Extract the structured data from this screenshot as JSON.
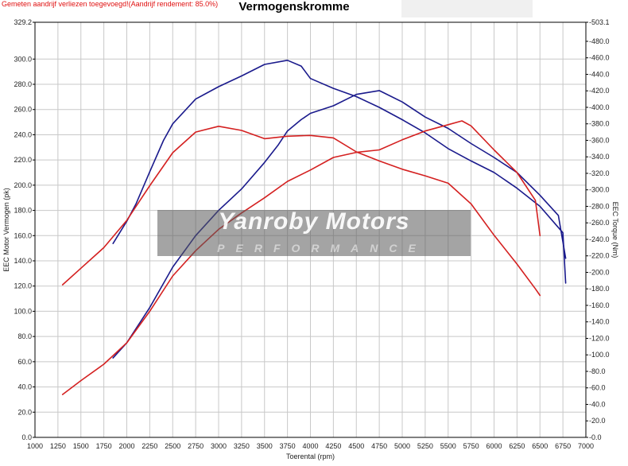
{
  "header": {
    "note": "Gemeten aandrijf verliezen toegevoegd!(Aandrijf rendement: 85.0%)",
    "title": "Vermogenskromme"
  },
  "watermark": {
    "main": "Yanroby Motors",
    "sub": "PERFORMANCE"
  },
  "colors": {
    "run1": "#1a1a8c",
    "run2": "#d42020",
    "grid": "#c8c8c8"
  },
  "chart_data": {
    "type": "line",
    "title": "Vermogenskromme",
    "xlabel": "Toerental (rpm)",
    "ylabel": "EEC Motor Vermogen (pk)",
    "y2label": "EEC Torque (Nm)",
    "xlim": [
      1000,
      7000
    ],
    "ylim": [
      0.0,
      329.2
    ],
    "y2lim": [
      0.0,
      503.1
    ],
    "grid": true,
    "x_ticks": [
      1000,
      1250,
      1500,
      1750,
      2000,
      2250,
      2500,
      2750,
      3000,
      3250,
      3500,
      3750,
      4000,
      4250,
      4500,
      4750,
      5000,
      5250,
      5500,
      5750,
      6000,
      6250,
      6500,
      6750,
      7000
    ],
    "y_ticks": [
      "0.0",
      "20.0",
      "40.0",
      "60.0",
      "80.0",
      "100.0",
      "120.0",
      "140.0",
      "160.0",
      "180.0",
      "200.0",
      "220.0",
      "240.0",
      "260.0",
      "280.0",
      "300.0",
      "329.2"
    ],
    "y_tick_values": [
      0,
      20,
      40,
      60,
      80,
      100,
      120,
      140,
      160,
      180,
      200,
      220,
      240,
      260,
      280,
      300,
      329.2
    ],
    "y2_ticks": [
      "0.0",
      "20.0",
      "40.0",
      "60.0",
      "80.0",
      "100.0",
      "120.0",
      "140.0",
      "160.0",
      "180.0",
      "200.0",
      "220.0",
      "240.0",
      "260.0",
      "280.0",
      "300.0",
      "320.0",
      "340.0",
      "360.0",
      "380.0",
      "400.0",
      "420.0",
      "440.0",
      "460.0",
      "480.0",
      "503.1"
    ],
    "y2_tick_values": [
      0,
      20,
      40,
      60,
      80,
      100,
      120,
      140,
      160,
      180,
      200,
      220,
      240,
      260,
      280,
      300,
      320,
      340,
      360,
      380,
      400,
      420,
      440,
      460,
      480,
      503.1
    ],
    "series": [
      {
        "color": "#1a1a8c",
        "axis": "left",
        "x": [
          1850,
          2000,
          2250,
          2500,
          2750,
          3000,
          3250,
          3500,
          3650,
          3750,
          3900,
          4000,
          4250,
          4500,
          4750,
          5000,
          5250,
          5500,
          5750,
          6000,
          6250,
          6500,
          6700,
          6780
        ],
        "values": [
          63,
          75,
          103,
          135,
          160,
          180,
          197,
          218,
          232,
          243,
          252,
          257,
          263,
          272,
          275,
          266,
          254,
          245,
          233,
          222,
          210,
          192,
          176,
          142
        ]
      },
      {
        "color": "#1a1a8c",
        "axis": "right",
        "x": [
          1850,
          2000,
          2100,
          2250,
          2400,
          2500,
          2750,
          3000,
          3250,
          3500,
          3750,
          3900,
          4000,
          4250,
          4500,
          4750,
          5000,
          5250,
          5500,
          5750,
          6000,
          6250,
          6500,
          6750,
          6780
        ],
        "values": [
          235,
          262,
          283,
          322,
          360,
          380,
          410,
          425,
          438,
          452,
          457,
          450,
          435,
          423,
          413,
          400,
          385,
          369,
          350,
          335,
          321,
          302,
          280,
          248,
          187
        ]
      },
      {
        "color": "#d42020",
        "axis": "left",
        "x": [
          1300,
          1500,
          1750,
          2000,
          2250,
          2500,
          2750,
          3000,
          3250,
          3500,
          3750,
          4000,
          4250,
          4500,
          4750,
          5000,
          5250,
          5500,
          5650,
          5750,
          6000,
          6250,
          6450,
          6500
        ],
        "values": [
          34,
          45,
          58,
          75,
          100,
          128,
          148,
          165,
          178,
          190,
          203,
          212,
          222,
          226,
          228,
          236,
          243,
          248,
          251,
          247,
          228,
          210,
          188,
          160
        ]
      },
      {
        "color": "#d42020",
        "axis": "right",
        "x": [
          1300,
          1500,
          1750,
          2000,
          2250,
          2500,
          2750,
          3000,
          3250,
          3500,
          3750,
          4000,
          4250,
          4500,
          4750,
          5000,
          5250,
          5500,
          5750,
          6000,
          6250,
          6450,
          6500
        ],
        "values": [
          185,
          205,
          230,
          263,
          305,
          345,
          370,
          377,
          372,
          362,
          365,
          366,
          363,
          346,
          335,
          325,
          317,
          308,
          283,
          245,
          210,
          180,
          172
        ]
      }
    ]
  }
}
